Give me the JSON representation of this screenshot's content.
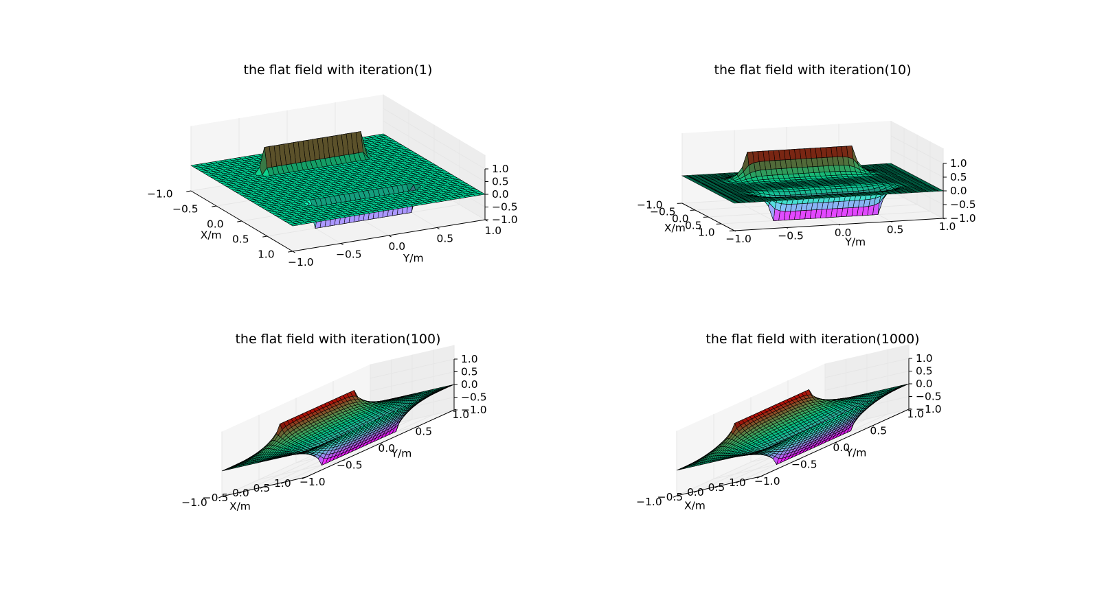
{
  "figure": {
    "colormap": "rainbow",
    "pane_color": "#f2f2f2",
    "grid_color": "#e6e6e6",
    "edge_color": "#000000"
  },
  "chart_data": [
    {
      "type": "surface3d",
      "title": "the flat field with iteration(1)",
      "xlabel": "X/m",
      "ylabel": "Y/m",
      "zlabel": "",
      "xlim": [
        -1.0,
        1.0
      ],
      "ylim": [
        -1.0,
        1.0
      ],
      "zlim": [
        -1.0,
        1.0
      ],
      "xticks": [
        "−1.0",
        "−0.5",
        "0.0",
        "0.5",
        "1.0"
      ],
      "yticks": [
        "−1.0",
        "−0.5",
        "0.0",
        "0.5",
        "1.0"
      ],
      "zticks": [
        "−1.0",
        "−0.5",
        "0.0",
        "0.5",
        "1.0"
      ],
      "iteration": 1,
      "boundary": {
        "positive_plate": 1.0,
        "negative_plate": -1.0,
        "edges": 0.0
      },
      "grid": true
    },
    {
      "type": "surface3d",
      "title": "the flat field with iteration(10)",
      "xlabel": "X/m",
      "ylabel": "Y/m",
      "zlabel": "",
      "xlim": [
        -1.0,
        1.0
      ],
      "ylim": [
        -1.0,
        1.0
      ],
      "zlim": [
        -1.0,
        1.0
      ],
      "xticks": [
        "−1.0",
        "−0.5",
        "0.0",
        "0.5",
        "1.0"
      ],
      "yticks": [
        "−1.0",
        "−0.5",
        "0.0",
        "0.5",
        "1.0"
      ],
      "zticks": [
        "−1.0",
        "−0.5",
        "0.0",
        "0.5",
        "1.0"
      ],
      "iteration": 10,
      "boundary": {
        "positive_plate": 1.0,
        "negative_plate": -1.0,
        "edges": 0.0
      },
      "grid": true
    },
    {
      "type": "surface3d",
      "title": "the flat field with iteration(100)",
      "xlabel": "X/m",
      "ylabel": "Y/m",
      "zlabel": "",
      "xlim": [
        -1.0,
        1.0
      ],
      "ylim": [
        -1.0,
        1.0
      ],
      "zlim": [
        -1.0,
        1.0
      ],
      "xticks": [
        "−1.0",
        "−0.5",
        "0.0",
        "0.5",
        "1.0"
      ],
      "yticks": [
        "−1.0",
        "−0.5",
        "0.0",
        "0.5",
        "1.0"
      ],
      "zticks": [
        "−1.0",
        "−0.5",
        "0.0",
        "0.5",
        "1.0"
      ],
      "iteration": 100,
      "boundary": {
        "positive_plate": 1.0,
        "negative_plate": -1.0,
        "edges": 0.0
      },
      "grid": true
    },
    {
      "type": "surface3d",
      "title": "the flat field with iteration(1000)",
      "xlabel": "X/m",
      "ylabel": "Y/m",
      "zlabel": "",
      "xlim": [
        -1.0,
        1.0
      ],
      "ylim": [
        -1.0,
        1.0
      ],
      "zlim": [
        -1.0,
        1.0
      ],
      "xticks": [
        "−1.0",
        "−0.5",
        "0.0",
        "0.5",
        "1.0"
      ],
      "yticks": [
        "−1.0",
        "−0.5",
        "0.0",
        "0.5",
        "1.0"
      ],
      "zticks": [
        "−1.0",
        "−0.5",
        "0.0",
        "0.5",
        "1.0"
      ],
      "iteration": 1000,
      "boundary": {
        "positive_plate": 1.0,
        "negative_plate": -1.0,
        "edges": 0.0
      },
      "grid": true
    }
  ]
}
